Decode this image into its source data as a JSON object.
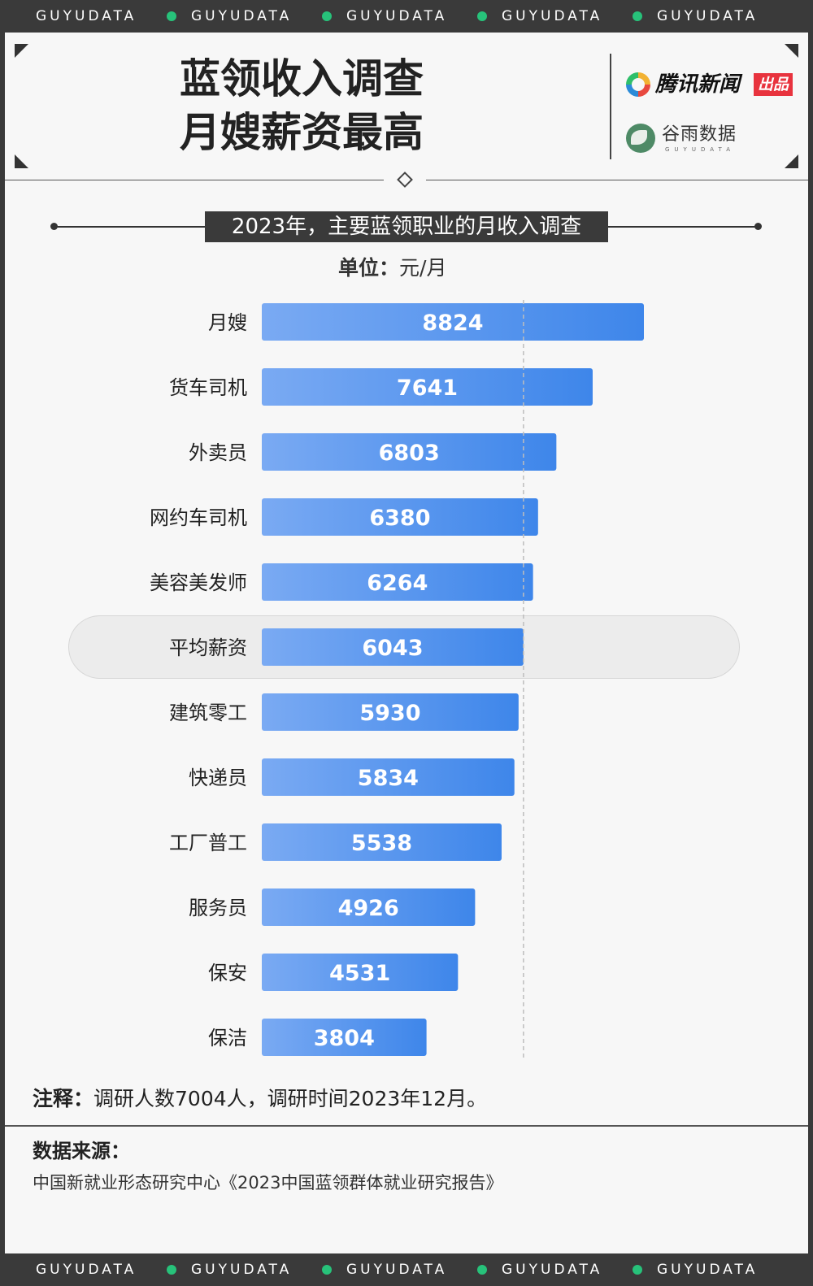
{
  "brand_band": {
    "items": [
      "GUYUDATA",
      "GUYUDATA",
      "GUYUDATA",
      "GUYUDATA",
      "GUYUDATA"
    ],
    "dot_color": "#27c27a"
  },
  "header": {
    "title_line1": "蓝领收入调查",
    "title_line2": "月嫂薪资最高",
    "logo_tencent": "腾讯新闻",
    "logo_tencent_badge": "出品",
    "logo_guyu": "谷雨数据",
    "logo_guyu_sub": "GUYUDATA"
  },
  "chart_data": {
    "type": "bar",
    "orientation": "horizontal",
    "title": "2023年，主要蓝领职业的月收入调查",
    "unit_label": "单位：",
    "unit": "元/月",
    "categories": [
      "月嫂",
      "货车司机",
      "外卖员",
      "网约车司机",
      "美容美发师",
      "平均薪资",
      "建筑零工",
      "快递员",
      "工厂普工",
      "服务员",
      "保安",
      "保洁"
    ],
    "values": [
      8824,
      7641,
      6803,
      6380,
      6264,
      6043,
      5930,
      5834,
      5538,
      4926,
      4531,
      3804
    ],
    "highlight_category": "平均薪资",
    "reference_line_value": 6043,
    "xlim": [
      0,
      9000
    ],
    "bar_color_start": "#7aaaf3",
    "bar_color_end": "#3e86ea",
    "value_label_color": "#ffffff",
    "grid": false,
    "legend": "none"
  },
  "footer": {
    "note_label": "注释：",
    "note_text": "调研人数7004人，调研时间2023年12月。",
    "source_label": "数据来源：",
    "source_text": "中国新就业形态研究中心《2023中国蓝领群体就业研究报告》"
  }
}
